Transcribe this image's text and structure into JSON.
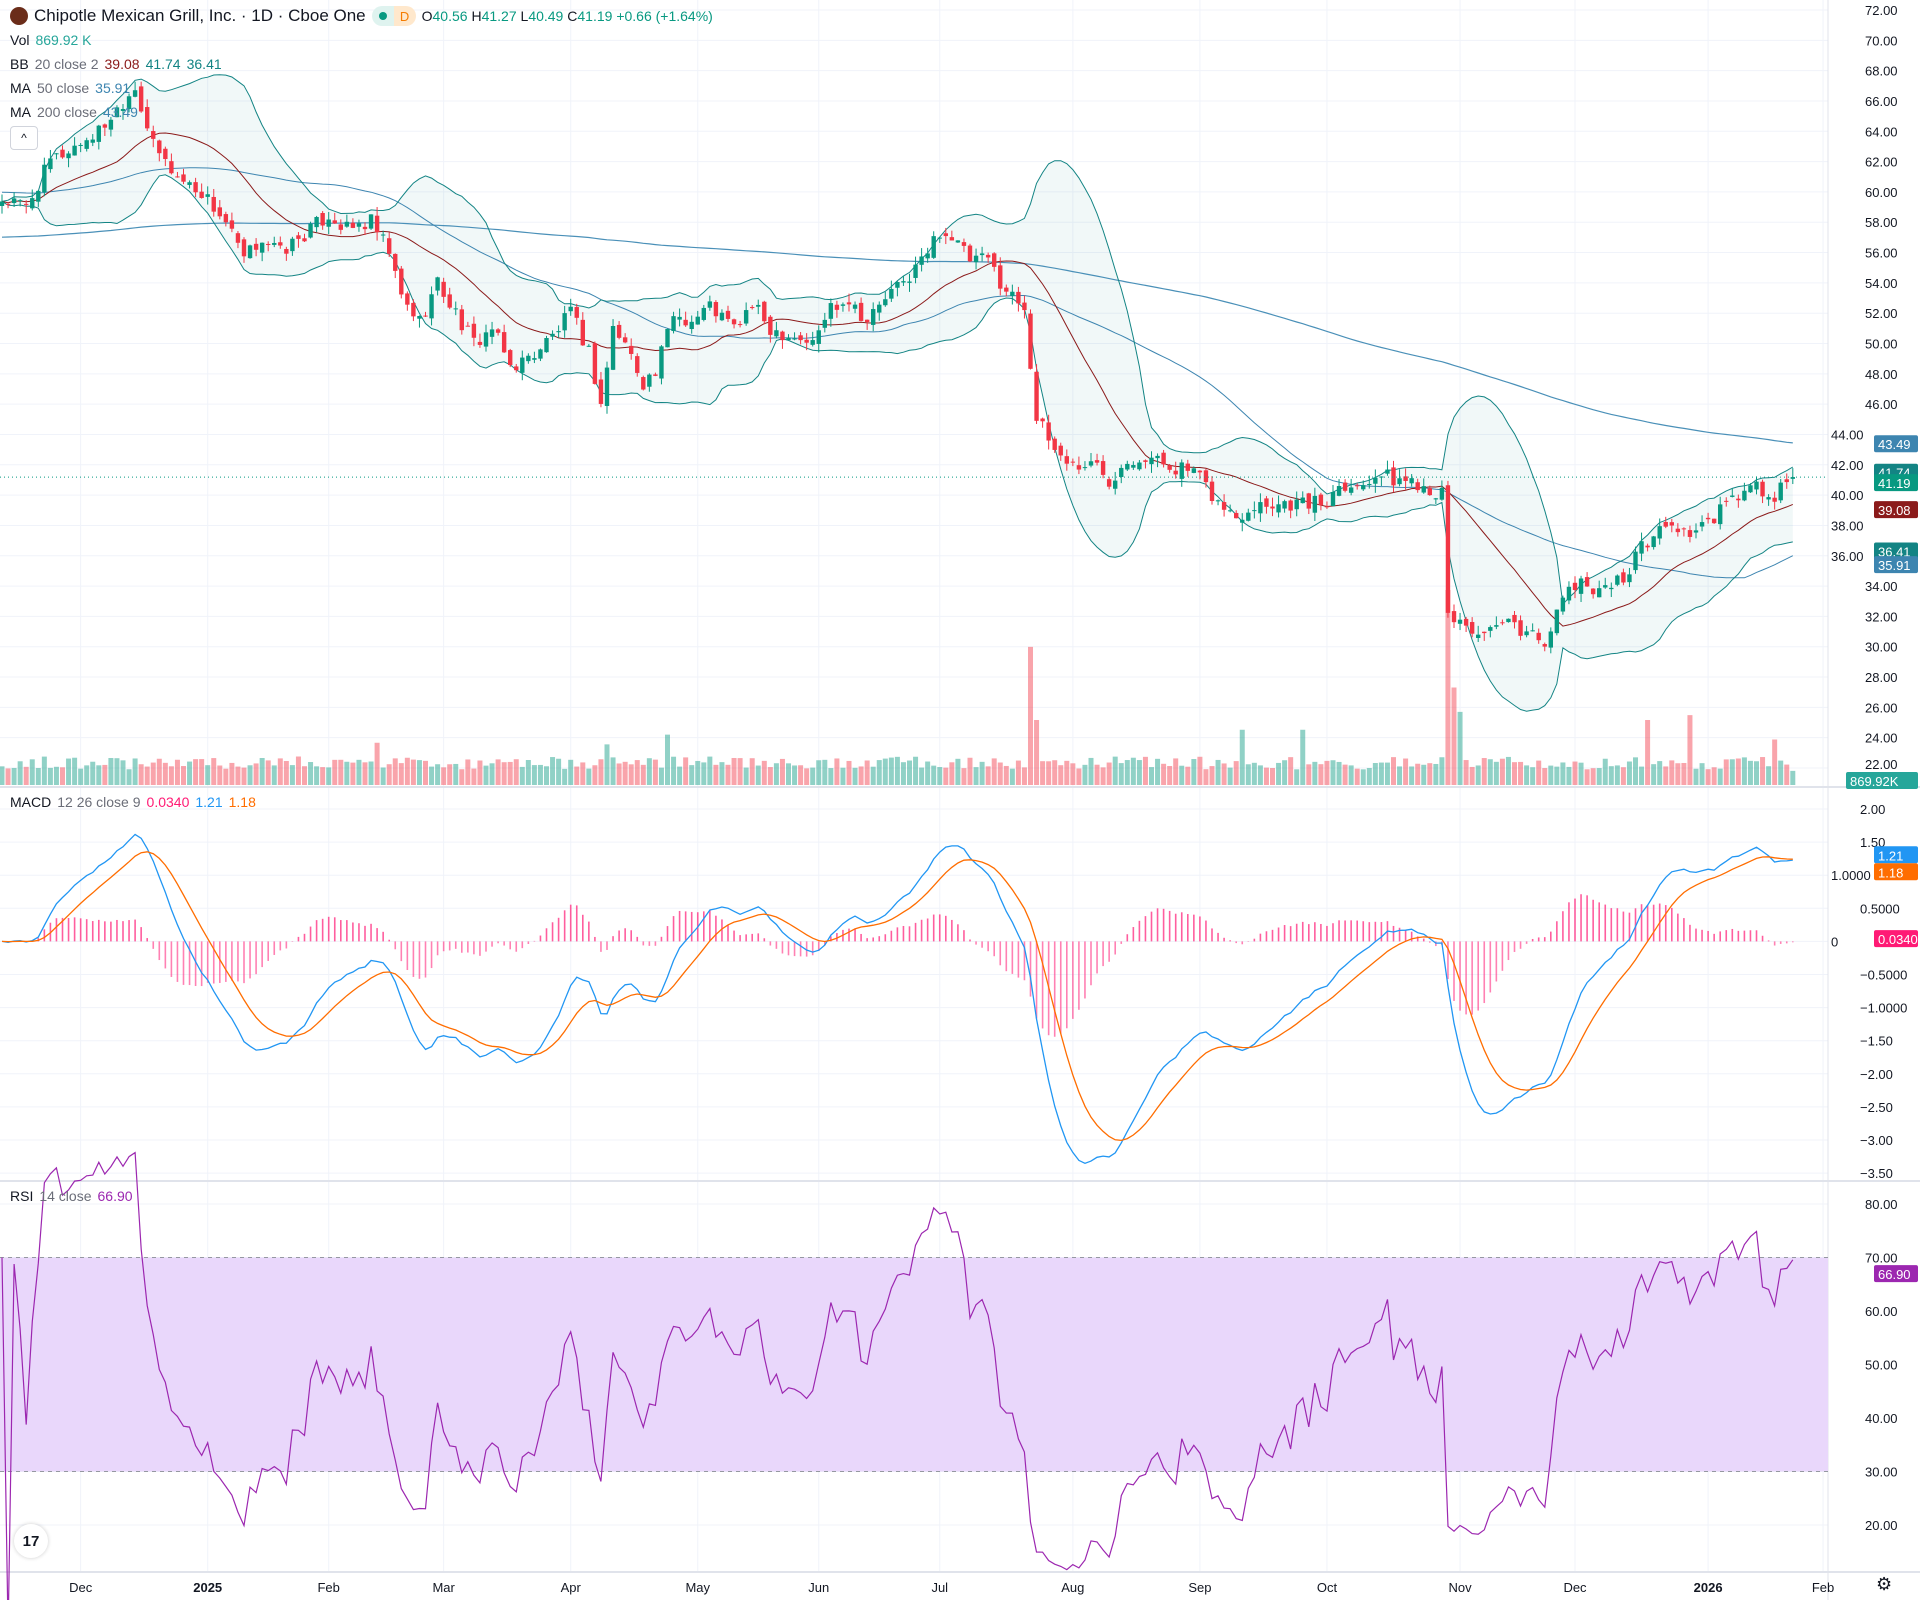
{
  "header": {
    "symbol_title": "Chipotle Mexican Grill, Inc. · 1D · Cboe One",
    "market_status_label": "D",
    "open_label": "O",
    "open": "40.56",
    "high_label": "H",
    "high": "41.27",
    "low_label": "L",
    "low": "40.49",
    "close_label": "C",
    "close": "41.19",
    "change": "+0.66 (+1.64%)"
  },
  "legends": {
    "vol_label": "Vol",
    "vol_value": "869.92 K",
    "bb_label": "BB",
    "bb_params": "20 close 2",
    "bb_basis": "39.08",
    "bb_upper": "41.74",
    "bb_lower": "36.41",
    "ma50_label": "MA",
    "ma50_params": "50 close",
    "ma50_value": "35.91",
    "ma200_label": "MA",
    "ma200_params": "200 close",
    "ma200_value": "43.49",
    "macd_label": "MACD",
    "macd_params": "12 26 close 9",
    "macd_hist": "0.0340",
    "macd_value": "1.21",
    "macd_signal": "1.18",
    "rsi_label": "RSI",
    "rsi_params": "14 close",
    "rsi_value": "66.90",
    "collapse_icon": "^"
  },
  "colors": {
    "up": "#089981",
    "down": "#f23645",
    "bb": "#138484",
    "bb_basis": "#8b1a1a",
    "ma50": "#3d85b0",
    "ma200": "#4a90b8",
    "macd": "#2196f3",
    "signal": "#ff6d00",
    "hist": "#ff1a75",
    "rsi": "#9c27b0",
    "rsi_band": "#e9d7fb"
  },
  "chart_data": [
    {
      "type": "candlestick",
      "title": "Chipotle Mexican Grill, Inc. · 1D · Cboe One",
      "note": "approximate closes at trading-day index keypoints",
      "ylim": [
        22,
        72
      ],
      "y_ticks": [
        "72.00",
        "70.00",
        "68.00",
        "66.00",
        "64.00",
        "62.00",
        "60.00",
        "58.00",
        "56.00",
        "54.00",
        "52.00",
        "50.00",
        "48.00",
        "46.00",
        "44.00",
        "42.00",
        "40.00",
        "38.00",
        "36.00",
        "34.00",
        "32.00",
        "30.00",
        "28.00",
        "26.00",
        "24.00",
        "22.00"
      ],
      "close_keypoints": [
        [
          0,
          59.5
        ],
        [
          4,
          59
        ],
        [
          8,
          62
        ],
        [
          12,
          63
        ],
        [
          16,
          64
        ],
        [
          20,
          66
        ],
        [
          22,
          67
        ],
        [
          25,
          63
        ],
        [
          29,
          61
        ],
        [
          33,
          60
        ],
        [
          37,
          58
        ],
        [
          40,
          55.5
        ],
        [
          43,
          57
        ],
        [
          46,
          56
        ],
        [
          51,
          57.5
        ],
        [
          54,
          58.5
        ],
        [
          57,
          57.5
        ],
        [
          61,
          58
        ],
        [
          64,
          56
        ],
        [
          66,
          53
        ],
        [
          69,
          51.5
        ],
        [
          72,
          54
        ],
        [
          75,
          52
        ],
        [
          78,
          50
        ],
        [
          81,
          51
        ],
        [
          84,
          48.5
        ],
        [
          87,
          49
        ],
        [
          91,
          50.5
        ],
        [
          94,
          52
        ],
        [
          97,
          49.5
        ],
        [
          99,
          46
        ],
        [
          101,
          51
        ],
        [
          103,
          50
        ],
        [
          106,
          47.5
        ],
        [
          108,
          48
        ],
        [
          111,
          52
        ],
        [
          114,
          51.5
        ],
        [
          117,
          52.5
        ],
        [
          121,
          51
        ],
        [
          124,
          52.5
        ],
        [
          127,
          51
        ],
        [
          131,
          50.5
        ],
        [
          134,
          50
        ],
        [
          137,
          52.5
        ],
        [
          140,
          53
        ],
        [
          143,
          51.5
        ],
        [
          146,
          53
        ],
        [
          149,
          54
        ],
        [
          153,
          56
        ],
        [
          155,
          57.5
        ],
        [
          157,
          57
        ],
        [
          160,
          55.5
        ],
        [
          163,
          55.5
        ],
        [
          166,
          53.5
        ],
        [
          169,
          52.5
        ],
        [
          171,
          45
        ],
        [
          174,
          43
        ],
        [
          177,
          42
        ],
        [
          181,
          42
        ],
        [
          183,
          41
        ],
        [
          186,
          42.5
        ],
        [
          189,
          42.5
        ],
        [
          193,
          42
        ],
        [
          197,
          41.5
        ],
        [
          201,
          39.5
        ],
        [
          204,
          38.5
        ],
        [
          207,
          39.5
        ],
        [
          211,
          39.5
        ],
        [
          215,
          39.5
        ],
        [
          219,
          39.5
        ],
        [
          221,
          41
        ],
        [
          224,
          40.5
        ],
        [
          227,
          41.5
        ],
        [
          230,
          41
        ],
        [
          233,
          41
        ],
        [
          236,
          40.5
        ],
        [
          238,
          40
        ],
        [
          239,
          32
        ],
        [
          242,
          31.5
        ],
        [
          245,
          30.5
        ],
        [
          248,
          31.5
        ],
        [
          252,
          31
        ],
        [
          255,
          30.5
        ],
        [
          257,
          32
        ],
        [
          259,
          34
        ],
        [
          262,
          34
        ],
        [
          265,
          34
        ],
        [
          268,
          34.5
        ],
        [
          270,
          36
        ],
        [
          273,
          37.5
        ],
        [
          276,
          38
        ],
        [
          279,
          37.5
        ],
        [
          282,
          38
        ],
        [
          284,
          39
        ],
        [
          287,
          40
        ],
        [
          290,
          40.5
        ],
        [
          293,
          39.5
        ],
        [
          294,
          40.5
        ],
        [
          296,
          41.19
        ]
      ],
      "volume_unit": "M",
      "volume_baseline": 1.6,
      "volume_spikes": [
        [
          170,
          8.5
        ],
        [
          171,
          4
        ],
        [
          239,
          12
        ],
        [
          240,
          6
        ],
        [
          241,
          4.5
        ],
        [
          272,
          4
        ],
        [
          36,
          1.2
        ],
        [
          62,
          2.6
        ],
        [
          100,
          2.5
        ],
        [
          110,
          3.1
        ],
        [
          205,
          3.4
        ],
        [
          215,
          3.4
        ],
        [
          279,
          4.3
        ],
        [
          293,
          2.8
        ],
        [
          296,
          0.87
        ]
      ]
    },
    {
      "type": "line",
      "title": "MACD 12 26 close 9",
      "ylim": [
        -3.5,
        2.0
      ],
      "y_ticks": [
        "2.00",
        "1.50",
        "1.0000",
        "0.5000",
        "0",
        "−0.5000",
        "−1.0000",
        "−1.50",
        "−2.00",
        "−2.50",
        "−3.00",
        "−3.50"
      ],
      "last": {
        "macd": 1.21,
        "signal": 1.18,
        "histogram": 0.034
      }
    },
    {
      "type": "line",
      "title": "RSI 14 close",
      "ylim": [
        15,
        80
      ],
      "band": [
        30,
        70
      ],
      "y_ticks": [
        "80.00",
        "70.00",
        "60.00",
        "50.00",
        "40.00",
        "30.00",
        "20.00"
      ],
      "last": 66.9
    }
  ],
  "x_axis": [
    {
      "label": "Dec",
      "day": 13
    },
    {
      "label": "2025",
      "day": 34,
      "bold": true
    },
    {
      "label": "Feb",
      "day": 54
    },
    {
      "label": "Mar",
      "day": 73
    },
    {
      "label": "Apr",
      "day": 94
    },
    {
      "label": "May",
      "day": 115
    },
    {
      "label": "Jun",
      "day": 135
    },
    {
      "label": "Jul",
      "day": 155
    },
    {
      "label": "Aug",
      "day": 177
    },
    {
      "label": "Sep",
      "day": 198
    },
    {
      "label": "Oct",
      "day": 219
    },
    {
      "label": "Nov",
      "day": 241
    },
    {
      "label": "Dec",
      "day": 260
    },
    {
      "label": "2026",
      "day": 282,
      "bold": true
    },
    {
      "label": "Feb",
      "day": 301
    }
  ],
  "badges": {
    "ma200": "43.49",
    "bb_upper": "41.74",
    "last_price": "41.19",
    "bb_basis": "39.08",
    "bb_lower": "36.41",
    "ma50": "35.91",
    "volume": "869.92K",
    "macd": "1.21",
    "signal": "1.18",
    "hist": "0.0340",
    "rsi": "66.90"
  },
  "footer": {
    "tv_logo": "17",
    "settings_icon": "⚙"
  }
}
